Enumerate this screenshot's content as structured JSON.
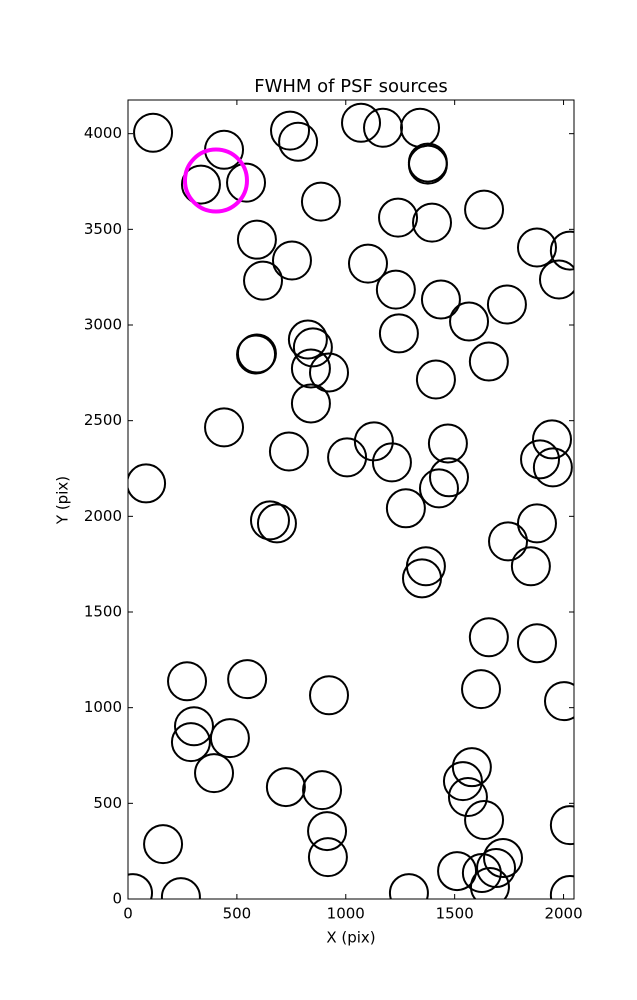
{
  "chart_data": {
    "type": "scatter",
    "title": "FWHM of PSF sources",
    "x_label": "X (pix)",
    "y_label": "Y (pix)",
    "xlim": [
      0,
      2048
    ],
    "ylim": [
      0,
      4176
    ],
    "xticks": [
      0,
      500,
      1000,
      1500,
      2000
    ],
    "yticks": [
      0,
      500,
      1000,
      1500,
      2000,
      2500,
      3000,
      3500,
      4000
    ],
    "grid": false,
    "series": [
      {
        "color": "#000000",
        "x": [
          115,
          441,
          335,
          542,
          744,
          781,
          1070,
          1171,
          1341,
          1377,
          1377,
          886,
          1635,
          1240,
          1396,
          592,
          753,
          1102,
          1878,
          2029,
          1979,
          620,
          1230,
          1437,
          1566,
          1740,
          1244,
          826,
          849,
          840,
          923,
          592,
          588,
          1657,
          1414,
          840,
          441,
          739,
          1129,
          1006,
          1212,
          1469,
          1474,
          1428,
          1947,
          1892,
          1951,
          83,
          1276,
          652,
          684,
          1878,
          1745,
          1850,
          1368,
          1350,
          1657,
          1878,
          271,
          547,
          923,
          1621,
          2002,
          303,
          289,
          468,
          395,
          725,
          891,
          1579,
          1538,
          1561,
          1635,
          2029,
          161,
          914,
          918,
          1722,
          1690,
          1625,
          1511,
          1662,
          23,
          243,
          1290,
          2029
        ],
        "values": [
          4005,
          3916,
          3734,
          3744,
          4016,
          3958,
          4057,
          4031,
          4031,
          3849,
          3838,
          3645,
          3603,
          3561,
          3535,
          3446,
          3337,
          3321,
          3405,
          3389,
          3238,
          3232,
          3185,
          3133,
          3018,
          3107,
          2956,
          2924,
          2883,
          2773,
          2752,
          2851,
          2846,
          2809,
          2715,
          2590,
          2465,
          2339,
          2392,
          2308,
          2282,
          2381,
          2204,
          2146,
          2402,
          2298,
          2256,
          2172,
          2042,
          1979,
          1963,
          1963,
          1869,
          1739,
          1739,
          1676,
          1368,
          1337,
          1138,
          1149,
          1065,
          1097,
          1034,
          903,
          820,
          841,
          658,
          585,
          569,
          689,
          616,
          533,
          413,
          386,
          287,
          355,
          219,
          214,
          162,
          136,
          146,
          63,
          31,
          10,
          31,
          21
        ]
      },
      {
        "color": "#ff00ff",
        "x": [
          404
        ],
        "values": [
          3755
        ]
      }
    ]
  }
}
